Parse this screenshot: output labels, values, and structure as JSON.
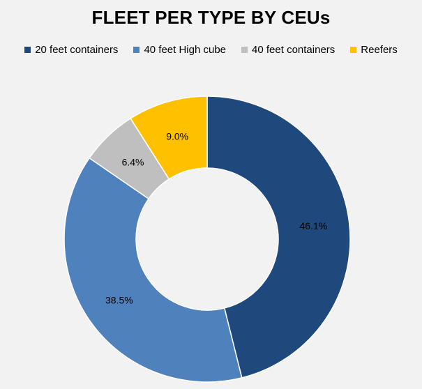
{
  "chart_data": {
    "type": "pie",
    "title": "FLEET PER TYPE BY CEUs",
    "donut": true,
    "legend_position": "top",
    "series": [
      {
        "name": "20 feet containers",
        "value": 46.1,
        "label": "46.1%",
        "color": "#1f497d"
      },
      {
        "name": "40 feet High cube",
        "value": 38.5,
        "label": "38.5%",
        "color": "#4f81bd"
      },
      {
        "name": "40 feet containers",
        "value": 6.4,
        "label": "6.4%",
        "color": "#bfbfbf"
      },
      {
        "name": "Reefers",
        "value": 9.0,
        "label": "9.0%",
        "color": "#ffc000"
      }
    ]
  }
}
